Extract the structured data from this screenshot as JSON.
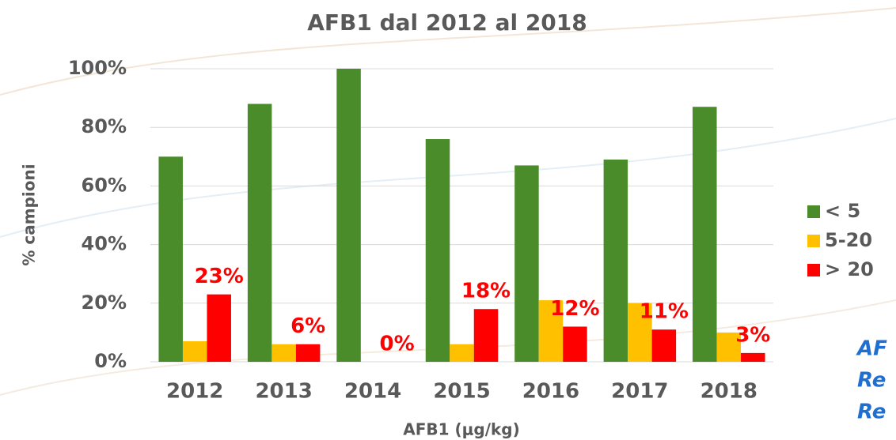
{
  "chart_data": {
    "type": "bar",
    "title": "AFB1 dal 2012 al 2018",
    "x_label": "AFB1 (μg/kg)",
    "y_label": "% campioni",
    "categories": [
      "2012",
      "2013",
      "2014",
      "2015",
      "2016",
      "2017",
      "2018"
    ],
    "series": [
      {
        "name": "< 5",
        "color": "#4a8c2a",
        "values": [
          70,
          88,
          100,
          76,
          67,
          69,
          87
        ]
      },
      {
        "name": "5-20",
        "color": "#ffc000",
        "values": [
          7,
          6,
          0,
          6,
          21,
          20,
          10
        ]
      },
      {
        "name": "> 20",
        "color": "#ff0000",
        "values": [
          23,
          6,
          0,
          18,
          12,
          11,
          3
        ],
        "value_labels": [
          "23%",
          "6%",
          "0%",
          "18%",
          "12%",
          "11%",
          "3%"
        ]
      }
    ],
    "ylim": [
      0,
      100
    ],
    "yticks": [
      {
        "value": 0,
        "label": "0%"
      },
      {
        "value": 20,
        "label": "20%"
      },
      {
        "value": 40,
        "label": "40%"
      },
      {
        "value": 60,
        "label": "60%"
      },
      {
        "value": 80,
        "label": "80%"
      },
      {
        "value": 100,
        "label": "100%"
      }
    ],
    "grid": true,
    "legend": "right",
    "annotations": [
      "AF",
      "Re",
      "Re"
    ]
  }
}
